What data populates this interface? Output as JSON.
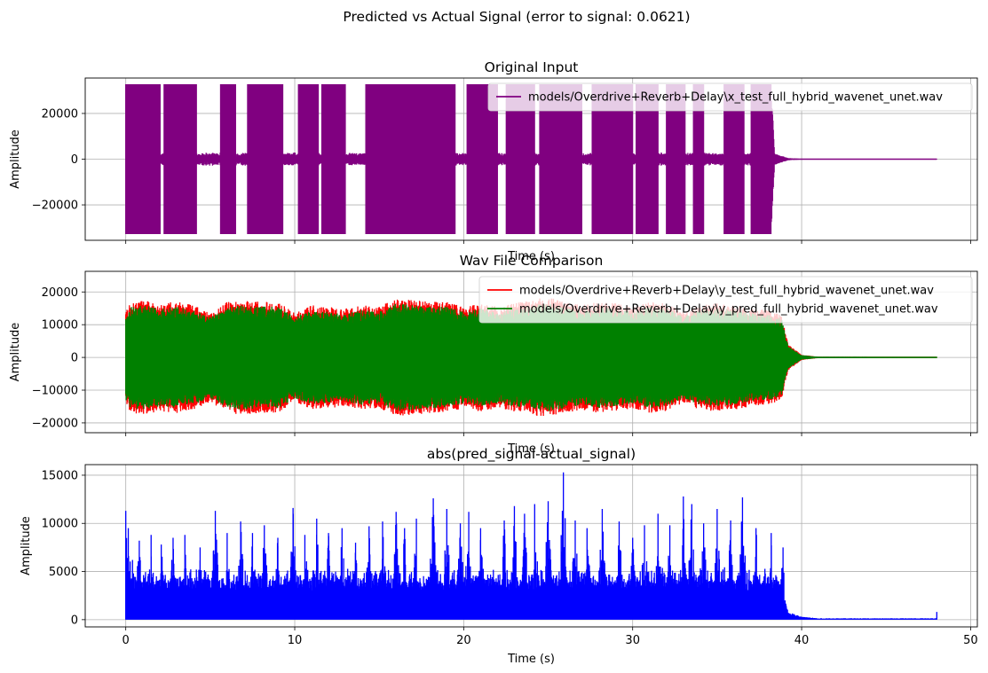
{
  "suptitle": "Predicted vs Actual Signal (error to signal: 0.0621)",
  "chart_data": [
    {
      "type": "line",
      "title": "Original Input",
      "xlabel": "Time (s)",
      "ylabel": "Amplitude",
      "xlim": [
        -2.4,
        50.4
      ],
      "ylim": [
        -35500,
        35500
      ],
      "yticks": [
        -20000,
        0,
        20000
      ],
      "ytick_labels": [
        "−20000",
        "0",
        "20000"
      ],
      "xticks": [
        0,
        10,
        20,
        30,
        40,
        50
      ],
      "show_xtick_labels": false,
      "grid": true,
      "legend_position": "top-right",
      "series": [
        {
          "name": "models/Overdrive+Reverb+Delay\\x_test_full_hybrid_wavenet_unet.wav",
          "color": "#800080",
          "duration": 48.0,
          "envelope": [
            [
              0.0,
              32767
            ],
            [
              2.05,
              32767
            ],
            [
              2.25,
              32767
            ],
            [
              3.3,
              32767
            ],
            [
              4.2,
              32767
            ],
            [
              5.0,
              32767
            ],
            [
              5.2,
              1500
            ],
            [
              5.6,
              32767
            ],
            [
              6.5,
              32767
            ],
            [
              6.7,
              2500
            ],
            [
              7.2,
              32767
            ],
            [
              9.3,
              32767
            ],
            [
              9.5,
              5000
            ],
            [
              10.2,
              32767
            ],
            [
              11.4,
              32767
            ],
            [
              11.6,
              32767
            ],
            [
              12.3,
              32767
            ],
            [
              13.0,
              32767
            ],
            [
              13.2,
              3000
            ],
            [
              13.7,
              4000
            ],
            [
              14.2,
              32767
            ],
            [
              19.5,
              32767
            ],
            [
              20.2,
              32767
            ],
            [
              22.0,
              32767
            ],
            [
              22.2,
              3000
            ],
            [
              22.5,
              32767
            ],
            [
              24.2,
              32767
            ],
            [
              24.5,
              32767
            ],
            [
              27.0,
              32767
            ],
            [
              27.3,
              3000
            ],
            [
              27.6,
              32767
            ],
            [
              30.0,
              32767
            ],
            [
              30.2,
              32767
            ],
            [
              31.5,
              32767
            ],
            [
              32.0,
              32767
            ],
            [
              33.1,
              32767
            ],
            [
              33.3,
              1500
            ],
            [
              33.6,
              32767
            ],
            [
              34.2,
              32767
            ],
            [
              34.4,
              32767
            ],
            [
              34.8,
              2500
            ],
            [
              35.4,
              32767
            ],
            [
              36.6,
              32767
            ],
            [
              37.0,
              32767
            ],
            [
              38.2,
              32767
            ],
            [
              38.4,
              2500
            ],
            [
              38.8,
              1500
            ],
            [
              39.2,
              500
            ],
            [
              40.0,
              150
            ],
            [
              48.0,
              120
            ]
          ],
          "gaps": [
            [
              2.05,
              2.25
            ],
            [
              4.2,
              5.6
            ],
            [
              6.5,
              7.2
            ],
            [
              9.3,
              10.2
            ],
            [
              11.4,
              11.6
            ],
            [
              13.0,
              14.2
            ],
            [
              19.5,
              20.2
            ],
            [
              22.0,
              22.5
            ],
            [
              24.2,
              24.5
            ],
            [
              27.0,
              27.6
            ],
            [
              30.0,
              30.2
            ],
            [
              31.5,
              32.0
            ],
            [
              33.1,
              33.6
            ],
            [
              34.2,
              35.4
            ],
            [
              36.6,
              37.0
            ]
          ]
        }
      ]
    },
    {
      "type": "line",
      "title": "Wav File Comparison",
      "xlabel": "Time (s)",
      "ylabel": "Amplitude",
      "xlim": [
        -2.4,
        50.4
      ],
      "ylim": [
        -23000,
        26300
      ],
      "yticks": [
        -20000,
        -10000,
        0,
        10000,
        20000
      ],
      "ytick_labels": [
        "−20000",
        "−10000",
        "0",
        "10000",
        "20000"
      ],
      "xticks": [
        0,
        10,
        20,
        30,
        40,
        50
      ],
      "show_xtick_labels": false,
      "grid": true,
      "legend_position": "top-right",
      "series": [
        {
          "name": "models/Overdrive+Reverb+Delay\\y_test_full_hybrid_wavenet_unet.wav",
          "color": "#ff0000",
          "duration": 48.0,
          "envelope": [
            [
              0.0,
              14000
            ],
            [
              0.3,
              17000
            ],
            [
              1.0,
              17500
            ],
            [
              2.0,
              16500
            ],
            [
              3.0,
              17000
            ],
            [
              4.0,
              16000
            ],
            [
              5.0,
              13500
            ],
            [
              6.0,
              17000
            ],
            [
              7.0,
              17500
            ],
            [
              8.0,
              17000
            ],
            [
              9.0,
              17000
            ],
            [
              10.0,
              13500
            ],
            [
              11.0,
              16000
            ],
            [
              12.0,
              15500
            ],
            [
              13.0,
              15000
            ],
            [
              14.0,
              16000
            ],
            [
              15.0,
              15500
            ],
            [
              16.0,
              18000
            ],
            [
              17.0,
              17500
            ],
            [
              18.0,
              17000
            ],
            [
              19.0,
              17000
            ],
            [
              20.0,
              15500
            ],
            [
              21.0,
              16500
            ],
            [
              22.0,
              15500
            ],
            [
              23.0,
              16500
            ],
            [
              24.0,
              17500
            ],
            [
              25.0,
              18500
            ],
            [
              26.0,
              17000
            ],
            [
              27.0,
              16000
            ],
            [
              28.0,
              17000
            ],
            [
              29.0,
              16500
            ],
            [
              30.0,
              15500
            ],
            [
              31.0,
              17000
            ],
            [
              32.0,
              16500
            ],
            [
              33.0,
              14000
            ],
            [
              34.0,
              16000
            ],
            [
              35.0,
              16500
            ],
            [
              36.0,
              16000
            ],
            [
              37.0,
              15000
            ],
            [
              38.0,
              14500
            ],
            [
              38.8,
              13000
            ],
            [
              39.2,
              4000
            ],
            [
              40.0,
              800
            ],
            [
              41.0,
              200
            ],
            [
              48.0,
              150
            ]
          ]
        },
        {
          "name": "models/Overdrive+Reverb+Delay\\y_pred_full_hybrid_wavenet_unet.wav",
          "color": "#008000",
          "duration": 48.0,
          "envelope": [
            [
              0.0,
              13000
            ],
            [
              0.3,
              15500
            ],
            [
              1.0,
              16000
            ],
            [
              2.0,
              15000
            ],
            [
              3.0,
              15500
            ],
            [
              4.0,
              14500
            ],
            [
              5.0,
              12500
            ],
            [
              6.0,
              15500
            ],
            [
              7.0,
              16000
            ],
            [
              8.0,
              15500
            ],
            [
              9.0,
              15500
            ],
            [
              10.0,
              12500
            ],
            [
              11.0,
              14500
            ],
            [
              12.0,
              14000
            ],
            [
              13.0,
              13500
            ],
            [
              14.0,
              14500
            ],
            [
              15.0,
              14000
            ],
            [
              16.0,
              16500
            ],
            [
              17.0,
              16000
            ],
            [
              18.0,
              15500
            ],
            [
              19.0,
              15500
            ],
            [
              20.0,
              14000
            ],
            [
              21.0,
              15000
            ],
            [
              22.0,
              14000
            ],
            [
              23.0,
              15000
            ],
            [
              24.0,
              16000
            ],
            [
              25.0,
              16500
            ],
            [
              26.0,
              15500
            ],
            [
              27.0,
              14500
            ],
            [
              28.0,
              15500
            ],
            [
              29.0,
              15000
            ],
            [
              30.0,
              14000
            ],
            [
              31.0,
              15500
            ],
            [
              32.0,
              15000
            ],
            [
              33.0,
              12500
            ],
            [
              34.0,
              14500
            ],
            [
              35.0,
              15000
            ],
            [
              36.0,
              14500
            ],
            [
              37.0,
              13500
            ],
            [
              38.0,
              13000
            ],
            [
              38.8,
              12000
            ],
            [
              39.2,
              3500
            ],
            [
              40.0,
              700
            ],
            [
              41.0,
              200
            ],
            [
              48.0,
              150
            ]
          ]
        }
      ]
    },
    {
      "type": "line",
      "title": "abs(pred_signal-actual_signal)",
      "xlabel": "Time (s)",
      "ylabel": "Amplitude",
      "xlim": [
        -2.4,
        50.4
      ],
      "ylim": [
        -750,
        16100
      ],
      "yticks": [
        0,
        5000,
        10000,
        15000
      ],
      "ytick_labels": [
        "0",
        "5000",
        "10000",
        "15000"
      ],
      "xticks": [
        0,
        10,
        20,
        30,
        40,
        50
      ],
      "xtick_labels": [
        "0",
        "10",
        "20",
        "30",
        "40",
        "50"
      ],
      "show_xtick_labels": true,
      "grid": true,
      "series": [
        {
          "name": "abs(pred_signal-actual_signal)",
          "color": "#0000ff",
          "duration": 48.0,
          "peaks": [
            [
              0.0,
              11300
            ],
            [
              0.15,
              9500
            ],
            [
              0.4,
              6200
            ],
            [
              0.8,
              8200
            ],
            [
              1.5,
              8800
            ],
            [
              2.1,
              7800
            ],
            [
              2.8,
              8500
            ],
            [
              3.5,
              8800
            ],
            [
              4.4,
              7500
            ],
            [
              5.3,
              11300
            ],
            [
              6.0,
              9000
            ],
            [
              6.8,
              10200
            ],
            [
              7.5,
              9000
            ],
            [
              8.2,
              9800
            ],
            [
              9.0,
              8500
            ],
            [
              9.9,
              11600
            ],
            [
              10.6,
              8800
            ],
            [
              11.3,
              10500
            ],
            [
              12.0,
              9000
            ],
            [
              12.8,
              9500
            ],
            [
              13.6,
              8000
            ],
            [
              14.4,
              9700
            ],
            [
              15.2,
              10200
            ],
            [
              16.0,
              11200
            ],
            [
              16.5,
              9500
            ],
            [
              17.2,
              10500
            ],
            [
              18.2,
              12600
            ],
            [
              19.0,
              11500
            ],
            [
              19.8,
              10000
            ],
            [
              20.3,
              11200
            ],
            [
              21.0,
              9500
            ],
            [
              22.4,
              10300
            ],
            [
              23.0,
              11800
            ],
            [
              23.6,
              11000
            ],
            [
              24.2,
              12000
            ],
            [
              25.0,
              12300
            ],
            [
              25.9,
              15300
            ],
            [
              26.6,
              10300
            ],
            [
              27.3,
              9500
            ],
            [
              28.2,
              11500
            ],
            [
              29.2,
              10200
            ],
            [
              30.0,
              8500
            ],
            [
              30.7,
              9800
            ],
            [
              31.5,
              11000
            ],
            [
              32.2,
              9800
            ],
            [
              33.0,
              12800
            ],
            [
              33.5,
              12000
            ],
            [
              34.2,
              10000
            ],
            [
              35.0,
              11500
            ],
            [
              35.8,
              10300
            ],
            [
              36.5,
              12700
            ],
            [
              37.3,
              9500
            ],
            [
              38.2,
              9000
            ],
            [
              38.9,
              7500
            ]
          ],
          "floor": [
            [
              0.0,
              3000
            ],
            [
              5.0,
              3000
            ],
            [
              10.0,
              3000
            ],
            [
              20.0,
              3000
            ],
            [
              30.0,
              3000
            ],
            [
              38.9,
              3000
            ],
            [
              39.2,
              800
            ],
            [
              40.0,
              300
            ],
            [
              41.0,
              150
            ],
            [
              48.0,
              150
            ]
          ],
          "end_spike": [
            48.0,
            800
          ]
        }
      ]
    }
  ]
}
